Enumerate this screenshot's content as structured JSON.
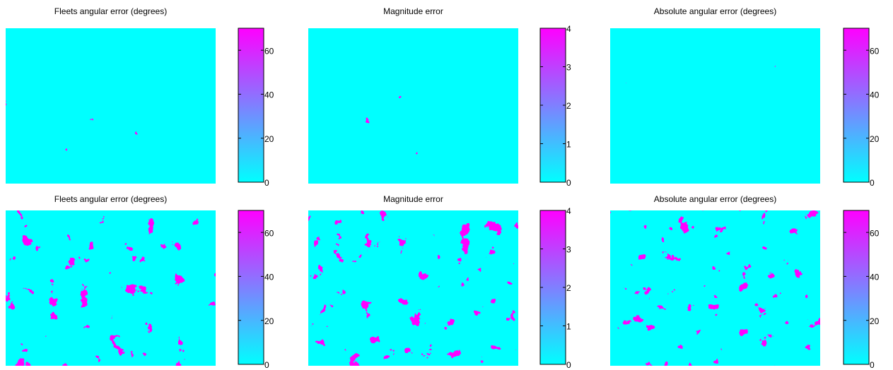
{
  "chart_data": [
    {
      "type": "heatmap",
      "title": "Fleets angular error (degrees)",
      "colormap": [
        "#00ffff",
        "#ff00ff"
      ],
      "clim": [
        0,
        70
      ],
      "cticks": [
        0,
        20,
        40,
        60
      ]
    },
    {
      "type": "heatmap",
      "title": "Magnitude error",
      "colormap": [
        "#00ffff",
        "#ff00ff"
      ],
      "clim": [
        0,
        4
      ],
      "cticks": [
        0,
        1,
        2,
        3,
        4
      ]
    },
    {
      "type": "heatmap",
      "title": "Absolute angular error (degrees)",
      "colormap": [
        "#00ffff",
        "#ff00ff"
      ],
      "clim": [
        0,
        70
      ],
      "cticks": [
        0,
        20,
        40,
        60
      ]
    },
    {
      "type": "heatmap",
      "title": "Fleets angular error (degrees)",
      "colormap": [
        "#00ffff",
        "#ff00ff"
      ],
      "clim": [
        0,
        70
      ],
      "cticks": [
        0,
        20,
        40,
        60
      ]
    },
    {
      "type": "heatmap",
      "title": "Magnitude error",
      "colormap": [
        "#00ffff",
        "#ff00ff"
      ],
      "clim": [
        0,
        4
      ],
      "cticks": [
        0,
        1,
        2,
        3,
        4
      ]
    },
    {
      "type": "heatmap",
      "title": "Absolute angular error (degrees)",
      "colormap": [
        "#00ffff",
        "#ff00ff"
      ],
      "clim": [
        0,
        70
      ],
      "cticks": [
        0,
        20,
        40,
        60
      ]
    }
  ]
}
